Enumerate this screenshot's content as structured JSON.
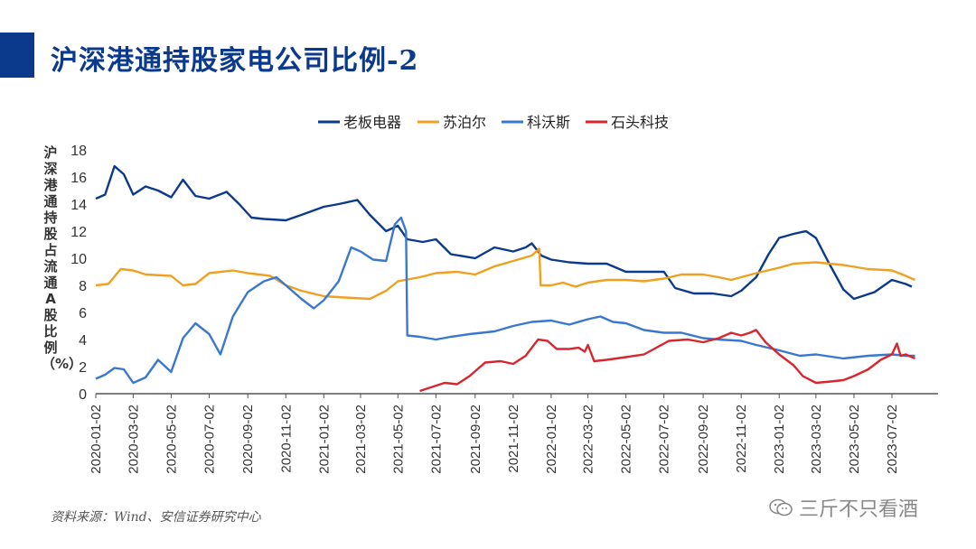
{
  "page": {
    "title": "沪深港通持股家电公司比例-2",
    "source": "资料来源：Wind、安信证券研究中心",
    "watermark": "三斤不只看酒"
  },
  "chart_data": {
    "type": "line",
    "title": "",
    "ylabel": "沪深港通持股占流通A股比例（%）",
    "xlabel": "",
    "ylim": [
      0,
      18
    ],
    "yticks": [
      0,
      2,
      4,
      6,
      8,
      10,
      12,
      14,
      16,
      18
    ],
    "xlim": [
      0,
      1352
    ],
    "x_tick_labels": [
      "2020-01-02",
      "2020-03-02",
      "2020-05-02",
      "2020-07-02",
      "2020-09-02",
      "2020-11-02",
      "2021-01-02",
      "2021-03-02",
      "2021-05-02",
      "2021-07-02",
      "2021-09-02",
      "2021-11-02",
      "2022-01-02",
      "2022-03-02",
      "2022-05-02",
      "2022-07-02",
      "2022-09-02",
      "2022-11-02",
      "2023-01-02",
      "2023-03-02",
      "2023-05-02",
      "2023-07-02"
    ],
    "x_tick_days": [
      0,
      60,
      121,
      182,
      244,
      305,
      366,
      425,
      485,
      546,
      609,
      670,
      731,
      790,
      851,
      912,
      975,
      1036,
      1097,
      1156,
      1217,
      1278
    ],
    "legend_position": "top-center",
    "series": [
      {
        "name": "老板电器",
        "color": "#0b3a8c",
        "points": [
          [
            0,
            14.4
          ],
          [
            15,
            14.7
          ],
          [
            30,
            16.8
          ],
          [
            45,
            16.2
          ],
          [
            60,
            14.7
          ],
          [
            80,
            15.3
          ],
          [
            100,
            15.0
          ],
          [
            121,
            14.5
          ],
          [
            140,
            15.8
          ],
          [
            160,
            14.6
          ],
          [
            182,
            14.4
          ],
          [
            210,
            14.9
          ],
          [
            230,
            14.0
          ],
          [
            250,
            13.0
          ],
          [
            270,
            12.9
          ],
          [
            305,
            12.8
          ],
          [
            330,
            13.2
          ],
          [
            366,
            13.8
          ],
          [
            390,
            14.0
          ],
          [
            420,
            14.3
          ],
          [
            440,
            13.2
          ],
          [
            466,
            12.0
          ],
          [
            485,
            12.4
          ],
          [
            500,
            11.4
          ],
          [
            525,
            11.2
          ],
          [
            546,
            11.4
          ],
          [
            570,
            10.3
          ],
          [
            609,
            10.0
          ],
          [
            640,
            10.8
          ],
          [
            670,
            10.5
          ],
          [
            690,
            10.8
          ],
          [
            700,
            11.1
          ],
          [
            715,
            10.2
          ],
          [
            731,
            9.9
          ],
          [
            760,
            9.7
          ],
          [
            790,
            9.6
          ],
          [
            820,
            9.6
          ],
          [
            851,
            9.0
          ],
          [
            880,
            9.0
          ],
          [
            912,
            9.0
          ],
          [
            930,
            7.8
          ],
          [
            960,
            7.4
          ],
          [
            990,
            7.4
          ],
          [
            1020,
            7.2
          ],
          [
            1036,
            7.6
          ],
          [
            1060,
            8.6
          ],
          [
            1080,
            10.3
          ],
          [
            1097,
            11.5
          ],
          [
            1120,
            11.8
          ],
          [
            1140,
            12.0
          ],
          [
            1156,
            11.5
          ],
          [
            1175,
            9.8
          ],
          [
            1200,
            7.7
          ],
          [
            1217,
            7.0
          ],
          [
            1250,
            7.5
          ],
          [
            1278,
            8.4
          ],
          [
            1300,
            8.1
          ],
          [
            1310,
            7.9
          ]
        ]
      },
      {
        "name": "苏泊尔",
        "color": "#f0a020",
        "points": [
          [
            0,
            8.0
          ],
          [
            20,
            8.1
          ],
          [
            40,
            9.2
          ],
          [
            60,
            9.1
          ],
          [
            80,
            8.8
          ],
          [
            121,
            8.7
          ],
          [
            140,
            8.0
          ],
          [
            160,
            8.1
          ],
          [
            182,
            8.9
          ],
          [
            220,
            9.1
          ],
          [
            244,
            8.9
          ],
          [
            280,
            8.7
          ],
          [
            305,
            8.0
          ],
          [
            330,
            7.6
          ],
          [
            366,
            7.2
          ],
          [
            400,
            7.1
          ],
          [
            440,
            7.0
          ],
          [
            466,
            7.6
          ],
          [
            485,
            8.3
          ],
          [
            520,
            8.6
          ],
          [
            546,
            8.9
          ],
          [
            580,
            9.0
          ],
          [
            609,
            8.8
          ],
          [
            640,
            9.4
          ],
          [
            670,
            9.8
          ],
          [
            700,
            10.2
          ],
          [
            712,
            10.7
          ],
          [
            714,
            8.0
          ],
          [
            731,
            8.0
          ],
          [
            750,
            8.2
          ],
          [
            770,
            7.9
          ],
          [
            790,
            8.2
          ],
          [
            820,
            8.4
          ],
          [
            851,
            8.4
          ],
          [
            880,
            8.3
          ],
          [
            912,
            8.5
          ],
          [
            940,
            8.8
          ],
          [
            975,
            8.8
          ],
          [
            1000,
            8.6
          ],
          [
            1020,
            8.4
          ],
          [
            1036,
            8.6
          ],
          [
            1060,
            8.9
          ],
          [
            1097,
            9.3
          ],
          [
            1120,
            9.6
          ],
          [
            1156,
            9.7
          ],
          [
            1200,
            9.5
          ],
          [
            1240,
            9.2
          ],
          [
            1278,
            9.1
          ],
          [
            1300,
            8.7
          ],
          [
            1315,
            8.4
          ]
        ]
      },
      {
        "name": "科沃斯",
        "color": "#3a78cf",
        "points": [
          [
            0,
            1.1
          ],
          [
            15,
            1.4
          ],
          [
            30,
            1.9
          ],
          [
            45,
            1.8
          ],
          [
            60,
            0.8
          ],
          [
            80,
            1.2
          ],
          [
            100,
            2.5
          ],
          [
            121,
            1.6
          ],
          [
            140,
            4.1
          ],
          [
            160,
            5.2
          ],
          [
            182,
            4.4
          ],
          [
            200,
            2.9
          ],
          [
            220,
            5.7
          ],
          [
            244,
            7.5
          ],
          [
            270,
            8.3
          ],
          [
            290,
            8.6
          ],
          [
            305,
            8.0
          ],
          [
            330,
            7.0
          ],
          [
            350,
            6.3
          ],
          [
            366,
            6.9
          ],
          [
            390,
            8.3
          ],
          [
            410,
            10.8
          ],
          [
            425,
            10.5
          ],
          [
            445,
            9.9
          ],
          [
            466,
            9.8
          ],
          [
            480,
            12.5
          ],
          [
            490,
            13.0
          ],
          [
            498,
            12.0
          ],
          [
            500,
            4.3
          ],
          [
            520,
            4.2
          ],
          [
            546,
            4.0
          ],
          [
            570,
            4.2
          ],
          [
            600,
            4.4
          ],
          [
            640,
            4.6
          ],
          [
            670,
            5.0
          ],
          [
            700,
            5.3
          ],
          [
            731,
            5.4
          ],
          [
            760,
            5.1
          ],
          [
            790,
            5.5
          ],
          [
            810,
            5.7
          ],
          [
            830,
            5.3
          ],
          [
            851,
            5.2
          ],
          [
            880,
            4.7
          ],
          [
            912,
            4.5
          ],
          [
            940,
            4.5
          ],
          [
            975,
            4.1
          ],
          [
            1000,
            4.0
          ],
          [
            1036,
            3.9
          ],
          [
            1060,
            3.6
          ],
          [
            1097,
            3.2
          ],
          [
            1130,
            2.8
          ],
          [
            1156,
            2.9
          ],
          [
            1200,
            2.6
          ],
          [
            1240,
            2.8
          ],
          [
            1278,
            2.9
          ],
          [
            1300,
            2.8
          ],
          [
            1315,
            2.8
          ]
        ]
      },
      {
        "name": "石头科技",
        "color": "#d8262e",
        "points": [
          [
            520,
            0.2
          ],
          [
            540,
            0.5
          ],
          [
            560,
            0.8
          ],
          [
            580,
            0.7
          ],
          [
            600,
            1.3
          ],
          [
            625,
            2.3
          ],
          [
            650,
            2.4
          ],
          [
            670,
            2.2
          ],
          [
            690,
            2.8
          ],
          [
            710,
            4.0
          ],
          [
            725,
            3.9
          ],
          [
            740,
            3.3
          ],
          [
            760,
            3.3
          ],
          [
            775,
            3.4
          ],
          [
            785,
            3.1
          ],
          [
            790,
            3.6
          ],
          [
            800,
            2.4
          ],
          [
            820,
            2.5
          ],
          [
            851,
            2.7
          ],
          [
            880,
            2.9
          ],
          [
            900,
            3.4
          ],
          [
            920,
            3.9
          ],
          [
            950,
            4.0
          ],
          [
            975,
            3.8
          ],
          [
            1000,
            4.1
          ],
          [
            1020,
            4.5
          ],
          [
            1036,
            4.3
          ],
          [
            1050,
            4.5
          ],
          [
            1060,
            4.7
          ],
          [
            1075,
            3.8
          ],
          [
            1097,
            2.9
          ],
          [
            1120,
            2.1
          ],
          [
            1135,
            1.3
          ],
          [
            1156,
            0.8
          ],
          [
            1180,
            0.9
          ],
          [
            1200,
            1.0
          ],
          [
            1217,
            1.3
          ],
          [
            1240,
            1.8
          ],
          [
            1260,
            2.5
          ],
          [
            1278,
            2.9
          ],
          [
            1286,
            3.7
          ],
          [
            1292,
            2.8
          ],
          [
            1300,
            2.9
          ],
          [
            1315,
            2.6
          ]
        ]
      }
    ]
  }
}
